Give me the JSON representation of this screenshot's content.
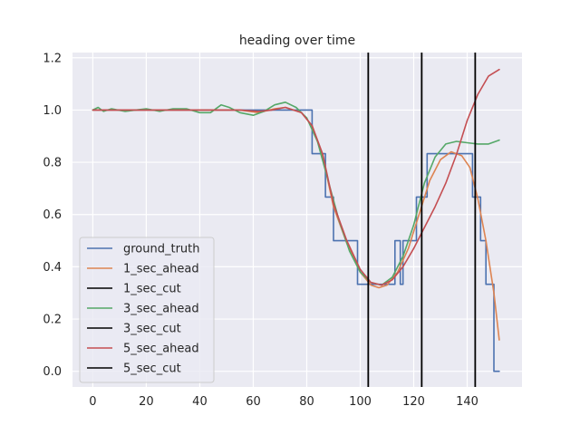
{
  "chart_data": {
    "type": "line",
    "title": "heading over time",
    "xlabel": "",
    "ylabel": "",
    "xlim": [
      -7.6,
      160.5
    ],
    "ylim": [
      -0.06,
      1.22
    ],
    "x_ticks": [
      0,
      20,
      40,
      60,
      80,
      100,
      120,
      140
    ],
    "y_ticks": [
      0.0,
      0.2,
      0.4,
      0.6,
      0.8,
      1.0,
      1.2
    ],
    "x_tick_labels": [
      "0",
      "20",
      "40",
      "60",
      "80",
      "100",
      "120",
      "140"
    ],
    "y_tick_labels": [
      "0.0",
      "0.2",
      "0.4",
      "0.6",
      "0.8",
      "1.0",
      "1.2"
    ],
    "grid": true,
    "background": "#eaeaf2",
    "legend_position": "lower-left",
    "series": [
      {
        "name": "ground_truth",
        "color": "#4c72b0",
        "points": [
          [
            0,
            1.0
          ],
          [
            82,
            1.0
          ],
          [
            82,
            0.833
          ],
          [
            87,
            0.833
          ],
          [
            87,
            0.667
          ],
          [
            90,
            0.667
          ],
          [
            90,
            0.5
          ],
          [
            99,
            0.5
          ],
          [
            99,
            0.333
          ],
          [
            113,
            0.333
          ],
          [
            113,
            0.5
          ],
          [
            115,
            0.5
          ],
          [
            115,
            0.333
          ],
          [
            116,
            0.333
          ],
          [
            116,
            0.5
          ],
          [
            121,
            0.5
          ],
          [
            121,
            0.667
          ],
          [
            125,
            0.667
          ],
          [
            125,
            0.833
          ],
          [
            142,
            0.833
          ],
          [
            142,
            0.667
          ],
          [
            145,
            0.667
          ],
          [
            145,
            0.5
          ],
          [
            147,
            0.5
          ],
          [
            147,
            0.333
          ],
          [
            150,
            0.333
          ],
          [
            150,
            0.0
          ],
          [
            152,
            0.0
          ]
        ]
      },
      {
        "name": "1_sec_ahead",
        "color": "#dd8452",
        "points": [
          [
            0,
            1.0
          ],
          [
            20,
            1.0
          ],
          [
            40,
            1.0
          ],
          [
            55,
            1.0
          ],
          [
            62,
            0.99
          ],
          [
            68,
            1.005
          ],
          [
            72,
            1.01
          ],
          [
            78,
            0.99
          ],
          [
            82,
            0.94
          ],
          [
            86,
            0.82
          ],
          [
            90,
            0.63
          ],
          [
            95,
            0.49
          ],
          [
            100,
            0.38
          ],
          [
            104,
            0.33
          ],
          [
            107,
            0.32
          ],
          [
            110,
            0.33
          ],
          [
            114,
            0.38
          ],
          [
            118,
            0.47
          ],
          [
            122,
            0.6
          ],
          [
            126,
            0.73
          ],
          [
            130,
            0.81
          ],
          [
            134,
            0.84
          ],
          [
            138,
            0.825
          ],
          [
            141,
            0.78
          ],
          [
            144,
            0.66
          ],
          [
            147,
            0.5
          ],
          [
            150,
            0.3
          ],
          [
            152,
            0.12
          ]
        ]
      },
      {
        "name": "3_sec_ahead",
        "color": "#55a868",
        "points": [
          [
            0,
            1.0
          ],
          [
            2,
            1.01
          ],
          [
            4,
            0.995
          ],
          [
            7,
            1.005
          ],
          [
            12,
            0.995
          ],
          [
            16,
            1.0
          ],
          [
            20,
            1.005
          ],
          [
            25,
            0.995
          ],
          [
            30,
            1.005
          ],
          [
            35,
            1.005
          ],
          [
            40,
            0.99
          ],
          [
            44,
            0.99
          ],
          [
            48,
            1.02
          ],
          [
            51,
            1.01
          ],
          [
            55,
            0.99
          ],
          [
            60,
            0.98
          ],
          [
            64,
            0.995
          ],
          [
            68,
            1.02
          ],
          [
            72,
            1.03
          ],
          [
            76,
            1.01
          ],
          [
            80,
            0.97
          ],
          [
            84,
            0.88
          ],
          [
            88,
            0.73
          ],
          [
            92,
            0.58
          ],
          [
            96,
            0.46
          ],
          [
            100,
            0.38
          ],
          [
            104,
            0.34
          ],
          [
            108,
            0.33
          ],
          [
            112,
            0.36
          ],
          [
            116,
            0.44
          ],
          [
            120,
            0.56
          ],
          [
            124,
            0.72
          ],
          [
            128,
            0.82
          ],
          [
            132,
            0.87
          ],
          [
            136,
            0.88
          ],
          [
            140,
            0.875
          ],
          [
            144,
            0.87
          ],
          [
            148,
            0.87
          ],
          [
            152,
            0.885
          ]
        ]
      },
      {
        "name": "5_sec_ahead",
        "color": "#c44e52",
        "points": [
          [
            0,
            1.0
          ],
          [
            20,
            1.0
          ],
          [
            40,
            1.0
          ],
          [
            55,
            1.0
          ],
          [
            62,
            0.995
          ],
          [
            67,
            1.0
          ],
          [
            72,
            1.01
          ],
          [
            78,
            0.99
          ],
          [
            82,
            0.94
          ],
          [
            86,
            0.83
          ],
          [
            90,
            0.64
          ],
          [
            95,
            0.5
          ],
          [
            100,
            0.39
          ],
          [
            104,
            0.34
          ],
          [
            108,
            0.33
          ],
          [
            112,
            0.35
          ],
          [
            116,
            0.4
          ],
          [
            120,
            0.47
          ],
          [
            124,
            0.55
          ],
          [
            128,
            0.63
          ],
          [
            132,
            0.72
          ],
          [
            136,
            0.83
          ],
          [
            140,
            0.96
          ],
          [
            144,
            1.06
          ],
          [
            148,
            1.13
          ],
          [
            152,
            1.155
          ]
        ]
      }
    ],
    "vlines": [
      {
        "name": "1_sec_cut",
        "x": 103,
        "color": "#000000"
      },
      {
        "name": "3_sec_cut",
        "x": 123,
        "color": "#000000"
      },
      {
        "name": "5_sec_cut",
        "x": 143,
        "color": "#000000"
      }
    ],
    "legend": [
      {
        "label": "ground_truth",
        "color": "#4c72b0"
      },
      {
        "label": "1_sec_ahead",
        "color": "#dd8452"
      },
      {
        "label": "1_sec_cut",
        "color": "#000000"
      },
      {
        "label": "3_sec_ahead",
        "color": "#55a868"
      },
      {
        "label": "3_sec_cut",
        "color": "#000000"
      },
      {
        "label": "5_sec_ahead",
        "color": "#c44e52"
      },
      {
        "label": "5_sec_cut",
        "color": "#000000"
      }
    ]
  }
}
